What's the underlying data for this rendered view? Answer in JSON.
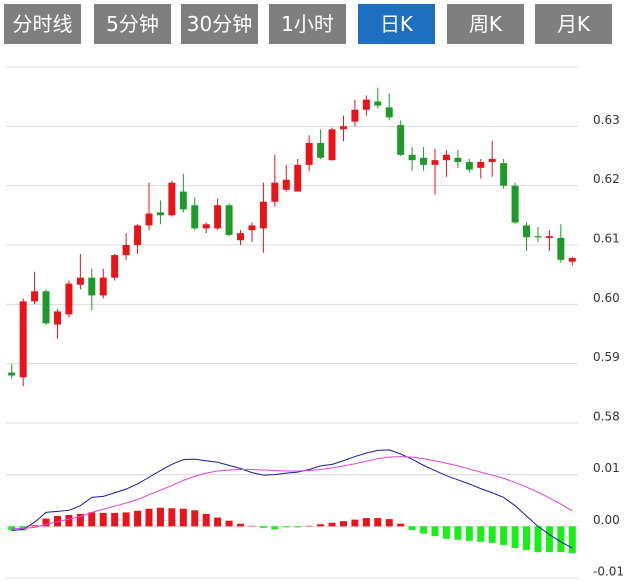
{
  "tabs": {
    "items": [
      "分时线",
      "5分钟",
      "30分钟",
      "1小时",
      "日K",
      "周K",
      "月K"
    ],
    "active": 4
  },
  "chart_data": [
    {
      "type": "candlestick",
      "open": [
        0.5885,
        0.5877,
        0.6005,
        0.6022,
        0.5966,
        0.5983,
        0.6033,
        0.6045,
        0.6015,
        0.6045,
        0.6083,
        0.61,
        0.6133,
        0.6155,
        0.615,
        0.619,
        0.6167,
        0.6128,
        0.6128,
        0.6167,
        0.6108,
        0.6125,
        0.6128,
        0.6173,
        0.6193,
        0.619,
        0.6235,
        0.6272,
        0.6243,
        0.6295,
        0.6308,
        0.6328,
        0.6342,
        0.6332,
        0.6302,
        0.6252,
        0.6247,
        0.6235,
        0.6243,
        0.6247,
        0.624,
        0.623,
        0.624,
        0.6238,
        0.62,
        0.6133,
        0.6115,
        0.6112,
        0.6112,
        0.6072
      ],
      "high": [
        0.59,
        0.601,
        0.6055,
        0.6025,
        0.5992,
        0.604,
        0.6085,
        0.606,
        0.606,
        0.6085,
        0.612,
        0.6135,
        0.6205,
        0.6175,
        0.6208,
        0.622,
        0.618,
        0.6138,
        0.6178,
        0.617,
        0.6125,
        0.6138,
        0.6205,
        0.6252,
        0.6235,
        0.6245,
        0.6285,
        0.6295,
        0.6298,
        0.6318,
        0.6345,
        0.6352,
        0.6365,
        0.6355,
        0.631,
        0.6265,
        0.6265,
        0.6262,
        0.626,
        0.626,
        0.6245,
        0.6245,
        0.6275,
        0.6245,
        0.6205,
        0.6138,
        0.613,
        0.6125,
        0.6135,
        0.608
      ],
      "low": [
        0.5875,
        0.5862,
        0.6,
        0.5965,
        0.5942,
        0.5978,
        0.6025,
        0.599,
        0.601,
        0.604,
        0.6075,
        0.6085,
        0.6125,
        0.6135,
        0.6148,
        0.6155,
        0.6125,
        0.612,
        0.6125,
        0.6115,
        0.61,
        0.6105,
        0.6087,
        0.6165,
        0.619,
        0.619,
        0.6225,
        0.6245,
        0.6242,
        0.6275,
        0.63,
        0.6318,
        0.633,
        0.631,
        0.625,
        0.6225,
        0.6225,
        0.6185,
        0.6215,
        0.623,
        0.6222,
        0.6212,
        0.6215,
        0.6195,
        0.6135,
        0.609,
        0.6105,
        0.609,
        0.607,
        0.6065
      ],
      "close": [
        0.588,
        0.6005,
        0.6022,
        0.5968,
        0.5988,
        0.6035,
        0.6045,
        0.6015,
        0.6045,
        0.6083,
        0.61,
        0.6133,
        0.6153,
        0.615,
        0.6205,
        0.616,
        0.6128,
        0.6135,
        0.6167,
        0.6117,
        0.612,
        0.6133,
        0.6173,
        0.6205,
        0.621,
        0.6235,
        0.6272,
        0.6247,
        0.6295,
        0.63,
        0.6328,
        0.6345,
        0.6335,
        0.6315,
        0.6252,
        0.6243,
        0.6235,
        0.6243,
        0.6252,
        0.624,
        0.6227,
        0.624,
        0.6245,
        0.62,
        0.6138,
        0.6113,
        0.6113,
        0.6115,
        0.6075,
        0.6078
      ],
      "up_color": "#e8141a",
      "down_color": "#1e9a2a",
      "ylim": [
        0.58,
        0.64
      ],
      "yticks": [
        0.58,
        0.59,
        {
          "value": 0.6,
          "label": "0.60"
        },
        0.61,
        0.62,
        0.63
      ],
      "grid": true
    },
    {
      "type": "macd",
      "series": [
        {
          "color": "#1a1aa6",
          "values": [
            -0.0008,
            -0.0006,
            0.0008,
            0.0027,
            0.0029,
            0.0031,
            0.004,
            0.0056,
            0.0058,
            0.0065,
            0.0072,
            0.0082,
            0.0095,
            0.0108,
            0.012,
            0.0129,
            0.013,
            0.0127,
            0.0124,
            0.0118,
            0.0112,
            0.0104,
            0.0099,
            0.01,
            0.0103,
            0.0105,
            0.011,
            0.0117,
            0.012,
            0.0127,
            0.0135,
            0.0142,
            0.0147,
            0.0148,
            0.014,
            0.013,
            0.0118,
            0.0108,
            0.0098,
            0.009,
            0.0082,
            0.0073,
            0.0065,
            0.0056,
            0.004,
            0.002,
            0.0,
            -0.0016,
            -0.003,
            -0.0042
          ]
        },
        {
          "color": "#e040e0",
          "values": [
            -0.0004,
            -0.0004,
            -0.0002,
            0.0004,
            0.0009,
            0.0014,
            0.0019,
            0.0027,
            0.0033,
            0.0039,
            0.0045,
            0.0052,
            0.0061,
            0.007,
            0.0079,
            0.0089,
            0.0097,
            0.0103,
            0.0107,
            0.0109,
            0.011,
            0.011,
            0.0109,
            0.0108,
            0.0107,
            0.0107,
            0.0108,
            0.011,
            0.0113,
            0.0117,
            0.0121,
            0.0126,
            0.0131,
            0.0134,
            0.0135,
            0.0134,
            0.0131,
            0.0127,
            0.0122,
            0.0117,
            0.0111,
            0.0105,
            0.0099,
            0.0093,
            0.0085,
            0.0076,
            0.0066,
            0.0055,
            0.0043,
            0.003
          ]
        }
      ],
      "histogram": {
        "values": [
          -0.0008,
          -0.0008,
          0.0002,
          0.0015,
          0.002,
          0.0022,
          0.0024,
          0.0027,
          0.0026,
          0.0026,
          0.0027,
          0.003,
          0.0034,
          0.0036,
          0.0035,
          0.0034,
          0.0031,
          0.0024,
          0.0017,
          0.0011,
          0.0005,
          0.0001,
          -0.0003,
          -0.0006,
          -0.0002,
          -0.0002,
          0.0001,
          0.0004,
          0.0007,
          0.001,
          0.0013,
          0.0016,
          0.0016,
          0.0014,
          0.0005,
          -0.0007,
          -0.0014,
          -0.0019,
          -0.0024,
          -0.0026,
          -0.0028,
          -0.003,
          -0.0032,
          -0.0036,
          -0.0042,
          -0.0046,
          -0.005,
          -0.005,
          -0.005,
          -0.0052
        ],
        "up_color": "#e8141a",
        "down_color": "#16f016"
      },
      "ylim": [
        -0.01,
        0.02
      ],
      "yticks": [
        -0.01,
        {
          "value": 0,
          "label": "0.00"
        },
        0.01
      ],
      "grid": true
    }
  ]
}
